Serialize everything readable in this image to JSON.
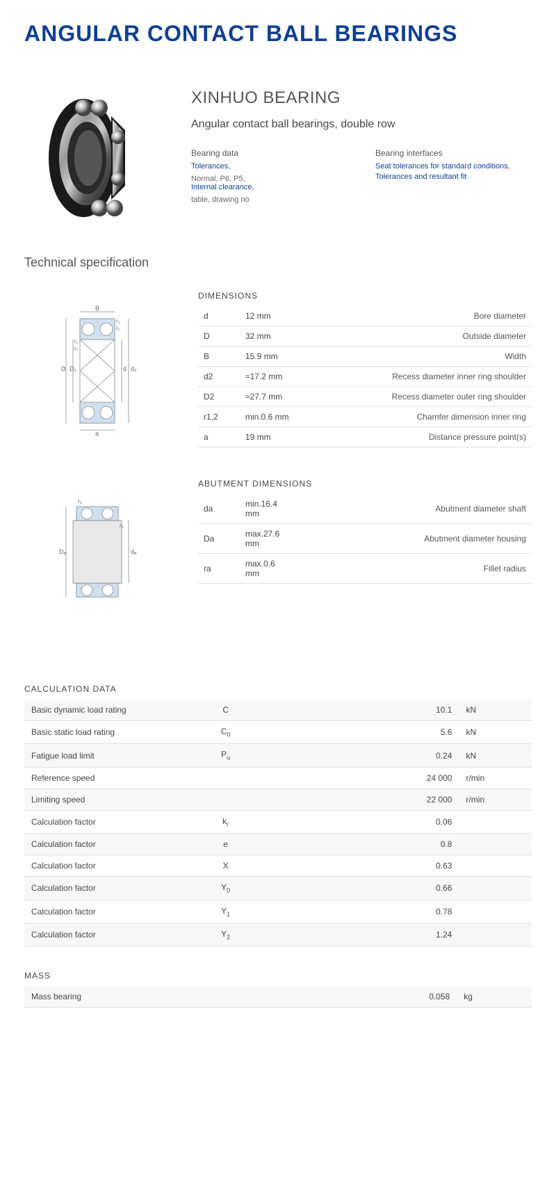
{
  "title": "ANGULAR CONTACT BALL BEARINGS",
  "brand": "XINHUO BEARING",
  "subtitle": "Angular contact ball bearings, double row",
  "bearing_data": {
    "title": "Bearing data",
    "items": [
      {
        "text": "Tolerances,",
        "link": true
      },
      {
        "text": "Normal, P6, P5,",
        "link": false
      },
      {
        "text": "Internal clearance,",
        "link": true
      },
      {
        "text": "table, drawing no",
        "link": false
      }
    ]
  },
  "bearing_interfaces": {
    "title": "Bearing interfaces",
    "items": [
      {
        "text": "Seat tolerances for standard conditions,",
        "link": true
      },
      {
        "text": "Tolerances and resultant fit",
        "link": true
      }
    ]
  },
  "tech_spec_title": "Technical specification",
  "dimensions": {
    "title": "DIMENSIONS",
    "rows": [
      {
        "sym": "d",
        "val": "12  mm",
        "desc": "Bore diameter"
      },
      {
        "sym": "D",
        "val": "32  mm",
        "desc": "Outside diameter"
      },
      {
        "sym": "B",
        "val": "15.9  mm",
        "desc": "Width"
      },
      {
        "sym": "d2",
        "val": "≈17.2 mm",
        "desc": "Recess diameter inner ring shoulder"
      },
      {
        "sym": "D2",
        "val": "≈27.7 mm",
        "desc": "Recess diameter outer ring shoulder"
      },
      {
        "sym": "r1,2",
        "val": "min.0.6 mm",
        "desc": "Chamfer dimension inner ring"
      },
      {
        "sym": "a",
        "val": "19  mm",
        "desc": "Distance pressure point(s)"
      }
    ]
  },
  "abutment": {
    "title": "ABUTMENT DIMENSIONS",
    "rows": [
      {
        "sym": "da",
        "val": "min.16.4 mm",
        "desc": "Abutment diameter shaft"
      },
      {
        "sym": "Da",
        "val": "max.27.6 mm",
        "desc": "Abutment diameter housing"
      },
      {
        "sym": "ra",
        "val": "max.0.6 mm",
        "desc": "Fillet radius"
      }
    ]
  },
  "calculation": {
    "title": "CALCULATION DATA",
    "rows": [
      {
        "label": "Basic dynamic load rating",
        "sym": "C",
        "sub": "",
        "val": "10.1",
        "unit": "kN"
      },
      {
        "label": "Basic static load rating",
        "sym": "C",
        "sub": "0",
        "val": "5.6",
        "unit": "kN"
      },
      {
        "label": "Fatigue load limit",
        "sym": "P",
        "sub": "u",
        "val": "0.24",
        "unit": "kN"
      },
      {
        "label": "Reference speed",
        "sym": "",
        "sub": "",
        "val": "24 000",
        "unit": "r/min"
      },
      {
        "label": "Limiting speed",
        "sym": "",
        "sub": "",
        "val": "22 000",
        "unit": "r/min"
      },
      {
        "label": "Calculation factor",
        "sym": "k",
        "sub": "r",
        "val": "0.06",
        "unit": ""
      },
      {
        "label": "Calculation factor",
        "sym": "e",
        "sub": "",
        "val": "0.8",
        "unit": ""
      },
      {
        "label": "Calculation factor",
        "sym": "X",
        "sub": "",
        "val": "0.63",
        "unit": ""
      },
      {
        "label": "Calculation factor",
        "sym": "Y",
        "sub": "0",
        "val": "0.66",
        "unit": ""
      },
      {
        "label": "Calculation factor",
        "sym": "Y",
        "sub": "1",
        "val": "0.78",
        "unit": ""
      },
      {
        "label": "Calculation factor",
        "sym": "Y",
        "sub": "2",
        "val": "1.24",
        "unit": ""
      }
    ]
  },
  "mass": {
    "title": "MASS",
    "rows": [
      {
        "label": "Mass bearing",
        "sym": "",
        "sub": "",
        "val": "0.058",
        "unit": "kg"
      }
    ]
  },
  "colors": {
    "title": "#0f3f93",
    "link": "#0f3f93",
    "text": "#444444",
    "light": "#666666",
    "row_alt": "#f7f7f7",
    "border": "#e0e0e0"
  }
}
